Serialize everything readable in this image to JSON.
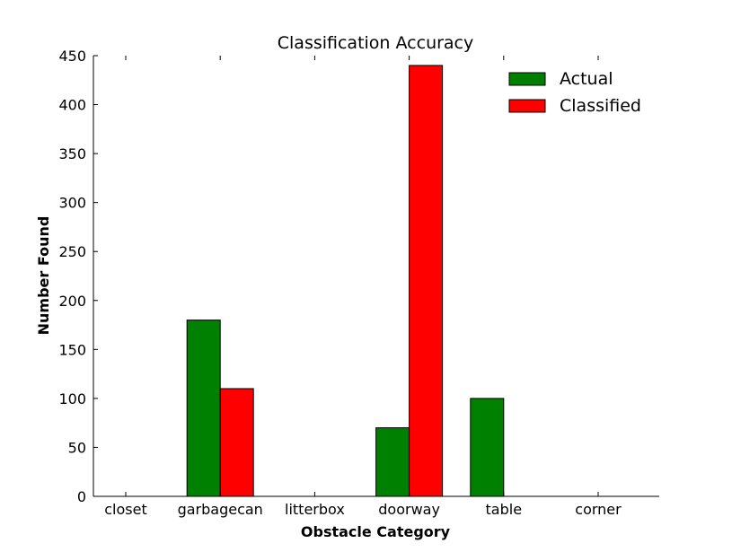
{
  "chart_data": {
    "type": "bar",
    "title": "Classification Accuracy",
    "xlabel": "Obstacle Category",
    "ylabel": "Number Found",
    "categories": [
      "closet",
      "garbagecan",
      "litterbox",
      "doorway",
      "table",
      "corner"
    ],
    "series": [
      {
        "name": "Actual",
        "color": "#008000",
        "values": [
          0,
          180,
          0,
          70,
          100,
          0
        ]
      },
      {
        "name": "Classified",
        "color": "#ff0000",
        "values": [
          0,
          110,
          0,
          440,
          0,
          0
        ]
      }
    ],
    "ylim": [
      0,
      450
    ],
    "yticks": [
      "0",
      "50",
      "100",
      "150",
      "200",
      "250",
      "300",
      "350",
      "400",
      "450"
    ],
    "grid": false,
    "legend_position": "top-right"
  }
}
